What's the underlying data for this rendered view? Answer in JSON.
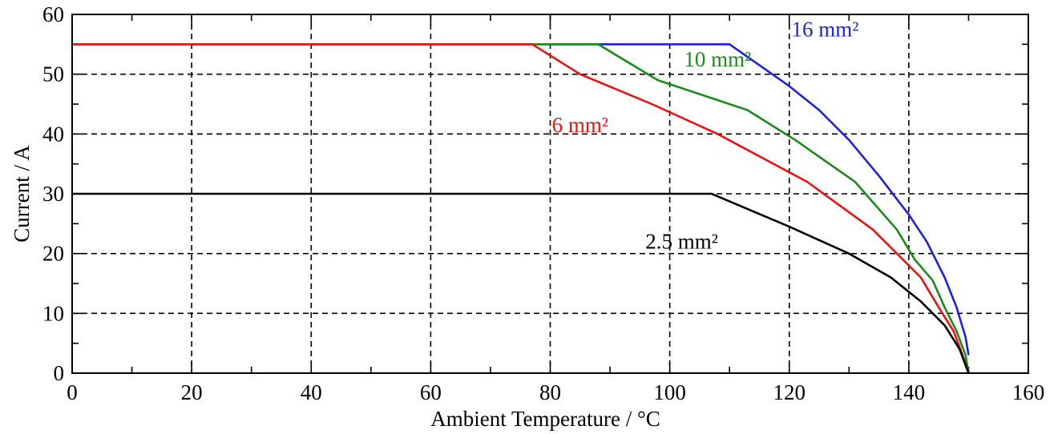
{
  "chart_data": {
    "type": "line",
    "title": "",
    "xlabel": "Ambient Temperature / °C",
    "ylabel": "Current / A",
    "xlim": [
      0,
      160
    ],
    "ylim": [
      0,
      60
    ],
    "x_ticks": [
      0,
      20,
      40,
      60,
      80,
      100,
      120,
      140,
      160
    ],
    "y_ticks": [
      0,
      10,
      20,
      30,
      40,
      50,
      60
    ],
    "x_tick_labels": [
      "0",
      "20",
      "40",
      "60",
      "80",
      "100",
      "120",
      "140",
      "160"
    ],
    "y_tick_labels": [
      "0",
      "10",
      "20",
      "30",
      "40",
      "50",
      "60"
    ],
    "x_minor_step": 10,
    "y_minor_step": 5,
    "grid": true,
    "grid_style": "dashed",
    "legend": "none",
    "series": [
      {
        "name": "16 mm²",
        "color": "#1f1fe6",
        "points": [
          [
            0,
            55
          ],
          [
            110,
            55
          ],
          [
            120,
            48
          ],
          [
            125,
            44
          ],
          [
            130,
            39
          ],
          [
            135,
            33
          ],
          [
            140,
            26.5
          ],
          [
            143,
            22
          ],
          [
            146,
            16
          ],
          [
            148,
            11
          ],
          [
            149.5,
            6
          ],
          [
            150,
            3
          ]
        ]
      },
      {
        "name": "10 mm²",
        "color": "#1a8c1a",
        "points": [
          [
            0,
            55
          ],
          [
            88,
            55
          ],
          [
            98,
            49
          ],
          [
            113,
            44
          ],
          [
            121,
            39
          ],
          [
            131,
            32
          ],
          [
            138,
            24
          ],
          [
            141,
            19
          ],
          [
            144,
            15.5
          ],
          [
            146,
            11
          ],
          [
            148,
            7
          ],
          [
            149.5,
            3
          ],
          [
            150,
            0
          ]
        ]
      },
      {
        "name": "6 mm²",
        "color": "#ee1111",
        "points": [
          [
            0,
            55
          ],
          [
            77,
            55
          ],
          [
            85,
            50
          ],
          [
            97,
            45
          ],
          [
            108,
            40
          ],
          [
            123,
            32
          ],
          [
            134,
            24
          ],
          [
            142,
            16
          ],
          [
            145,
            11
          ],
          [
            147.5,
            7
          ],
          [
            149,
            3
          ],
          [
            150,
            0
          ]
        ]
      },
      {
        "name": "2.5 mm²",
        "color": "#000000",
        "points": [
          [
            0,
            30
          ],
          [
            107,
            30
          ],
          [
            120,
            24.5
          ],
          [
            130,
            20
          ],
          [
            137,
            16
          ],
          [
            142,
            12
          ],
          [
            146,
            8
          ],
          [
            148.5,
            4
          ],
          [
            150,
            0
          ]
        ]
      }
    ],
    "annotations": [
      {
        "text": "16 mm²",
        "x": 126,
        "y": 57.5,
        "color": "#1f1fe6"
      },
      {
        "text": "10 mm²",
        "x": 108,
        "y": 52.5,
        "color": "#1a8c1a"
      },
      {
        "text": "6 mm²",
        "x": 85,
        "y": 41.5,
        "color": "#ee1111"
      },
      {
        "text": "2.5 mm²",
        "x": 102,
        "y": 22,
        "color": "#000000"
      }
    ]
  }
}
